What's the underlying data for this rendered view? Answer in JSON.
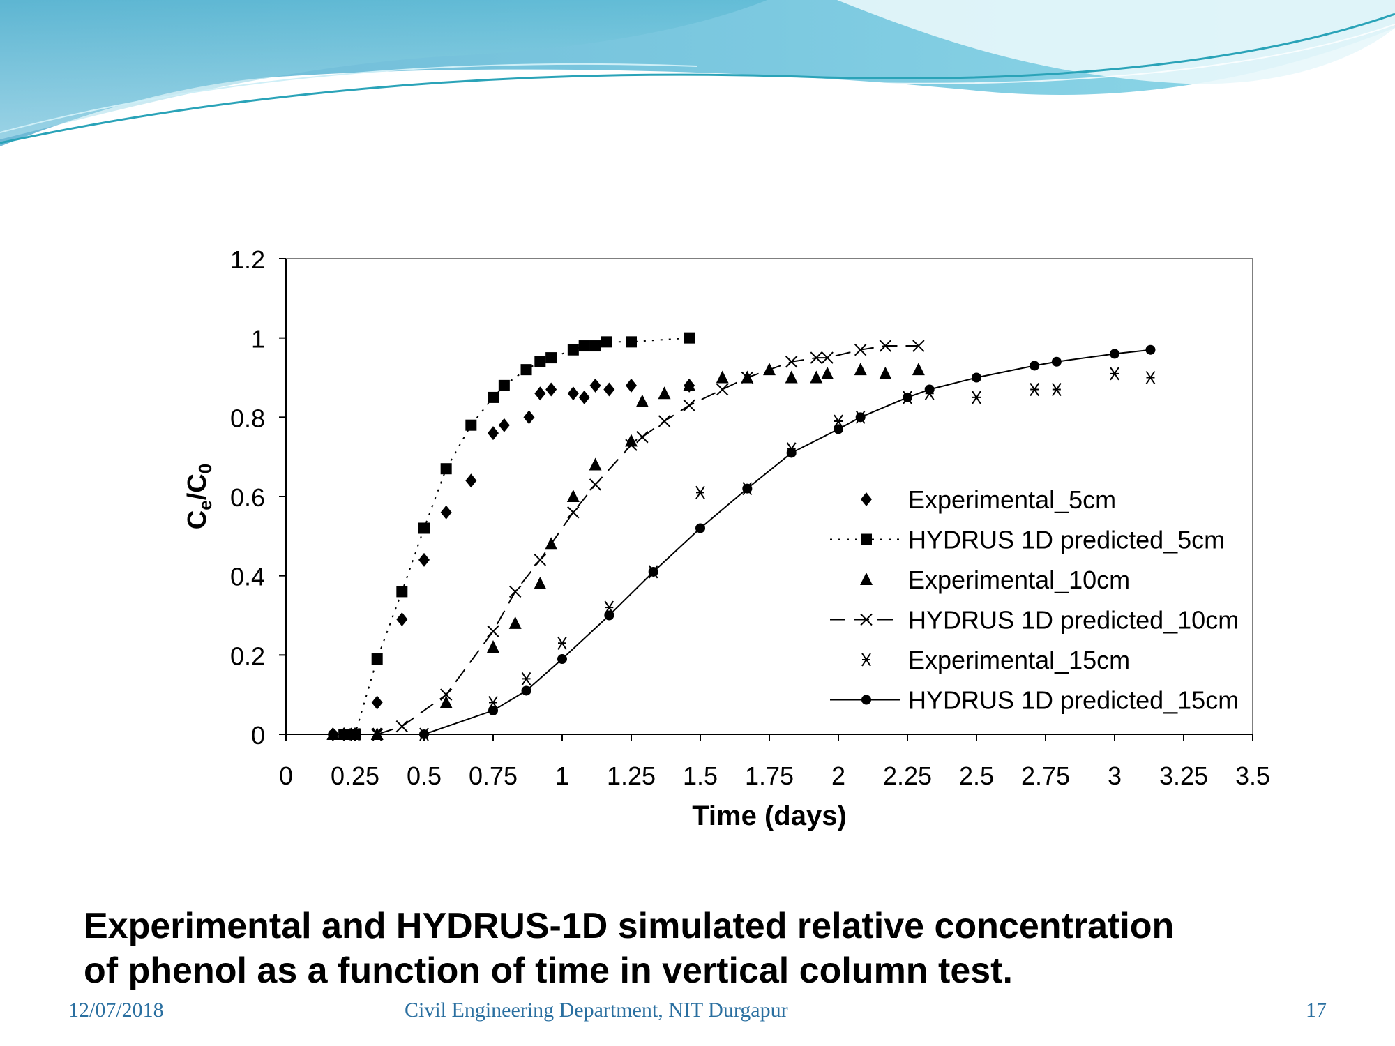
{
  "slide": {
    "caption_line1": "Experimental and HYDRUS-1D simulated relative concentration",
    "caption_line2": "of phenol as a function of time in vertical column test.",
    "footer_date": "12/07/2018",
    "footer_department": "Civil Engineering Department, NIT Durgapur",
    "footer_page": "17"
  },
  "colors": {
    "banner_dark": "#3aa7c9",
    "banner_light": "#a9dcec",
    "footer_text": "#2a6fa0",
    "series": "#000000"
  },
  "chart_data": {
    "type": "scatter",
    "title": "",
    "xlabel": "Time (days)",
    "ylabel": "Ce/C0",
    "ylabel_main": "C",
    "ylabel_sub1": "e",
    "ylabel_slash": "/C",
    "ylabel_sub2": "0",
    "xlim": [
      0,
      3.5
    ],
    "ylim": [
      0,
      1.2
    ],
    "xticks": [
      "0",
      "0.25",
      "0.5",
      "0.75",
      "1",
      "1.25",
      "1.5",
      "1.75",
      "2",
      "2.25",
      "2.5",
      "2.75",
      "3",
      "3.25",
      "3.5"
    ],
    "yticks": [
      "0",
      "0.2",
      "0.4",
      "0.6",
      "0.8",
      "1",
      "1.2"
    ],
    "grid": false,
    "legend_position": "right-center",
    "series": [
      {
        "name": "Experimental_5cm",
        "marker": "diamond",
        "line": "none",
        "x": [
          0.17,
          0.21,
          0.25,
          0.33,
          0.42,
          0.5,
          0.58,
          0.67,
          0.75,
          0.79,
          0.88,
          0.92,
          0.96,
          1.04,
          1.08,
          1.12,
          1.17,
          1.25,
          1.46
        ],
        "y": [
          0.0,
          0.0,
          0.0,
          0.08,
          0.29,
          0.44,
          0.56,
          0.64,
          0.76,
          0.78,
          0.8,
          0.86,
          0.87,
          0.86,
          0.85,
          0.88,
          0.87,
          0.88,
          0.88
        ]
      },
      {
        "name": "HYDRUS 1D predicted_5cm",
        "marker": "square",
        "line": "dotted",
        "x": [
          0.21,
          0.25,
          0.33,
          0.42,
          0.5,
          0.58,
          0.67,
          0.75,
          0.79,
          0.87,
          0.92,
          0.96,
          1.04,
          1.08,
          1.12,
          1.16,
          1.25,
          1.46
        ],
        "y": [
          0.0,
          0.0,
          0.19,
          0.36,
          0.52,
          0.67,
          0.78,
          0.85,
          0.88,
          0.92,
          0.94,
          0.95,
          0.97,
          0.98,
          0.98,
          0.99,
          0.99,
          1.0
        ]
      },
      {
        "name": "Experimental_10cm",
        "marker": "triangle",
        "line": "none",
        "x": [
          0.17,
          0.21,
          0.25,
          0.33,
          0.58,
          0.75,
          0.83,
          0.92,
          0.96,
          1.04,
          1.12,
          1.25,
          1.29,
          1.37,
          1.46,
          1.58,
          1.67,
          1.75,
          1.83,
          1.92,
          1.96,
          2.08,
          2.17,
          2.29
        ],
        "y": [
          0.0,
          0.0,
          0.0,
          0.0,
          0.08,
          0.22,
          0.28,
          0.38,
          0.48,
          0.6,
          0.68,
          0.74,
          0.84,
          0.86,
          0.88,
          0.9,
          0.9,
          0.92,
          0.9,
          0.9,
          0.91,
          0.92,
          0.91,
          0.92
        ]
      },
      {
        "name": "HYDRUS 1D predicted_10cm",
        "marker": "x",
        "line": "dashed",
        "x": [
          0.25,
          0.33,
          0.42,
          0.58,
          0.75,
          0.83,
          0.92,
          1.04,
          1.12,
          1.25,
          1.29,
          1.37,
          1.46,
          1.58,
          1.67,
          1.83,
          1.92,
          1.96,
          2.08,
          2.17,
          2.29
        ],
        "y": [
          0.0,
          0.0,
          0.02,
          0.1,
          0.26,
          0.36,
          0.44,
          0.56,
          0.63,
          0.73,
          0.75,
          0.79,
          0.83,
          0.87,
          0.9,
          0.94,
          0.95,
          0.95,
          0.97,
          0.98,
          0.98
        ]
      },
      {
        "name": "Experimental_15cm",
        "marker": "asterisk",
        "line": "none",
        "x": [
          0.25,
          0.33,
          0.5,
          0.75,
          0.87,
          1.0,
          1.17,
          1.33,
          1.5,
          1.67,
          1.83,
          2.0,
          2.08,
          2.25,
          2.33,
          2.5,
          2.71,
          2.79,
          3.0,
          3.13
        ],
        "y": [
          0.0,
          0.0,
          0.0,
          0.08,
          0.14,
          0.23,
          0.32,
          0.41,
          0.61,
          0.62,
          0.72,
          0.79,
          0.8,
          0.85,
          0.86,
          0.85,
          0.87,
          0.87,
          0.91,
          0.9
        ]
      },
      {
        "name": "HYDRUS 1D predicted_15cm",
        "marker": "circle",
        "line": "solid",
        "x": [
          0.17,
          0.25,
          0.5,
          0.75,
          0.87,
          1.0,
          1.17,
          1.33,
          1.5,
          1.67,
          1.83,
          2.0,
          2.08,
          2.25,
          2.33,
          2.5,
          2.71,
          2.79,
          3.0,
          3.13
        ],
        "y": [
          0.0,
          0.0,
          0.0,
          0.06,
          0.11,
          0.19,
          0.3,
          0.41,
          0.52,
          0.62,
          0.71,
          0.77,
          0.8,
          0.85,
          0.87,
          0.9,
          0.93,
          0.94,
          0.96,
          0.97
        ]
      }
    ]
  }
}
